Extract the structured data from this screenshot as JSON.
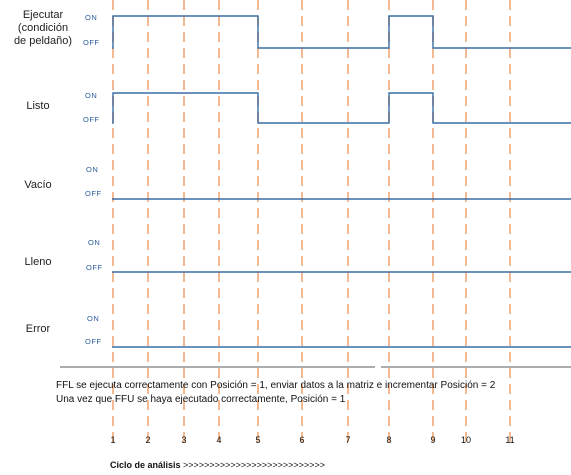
{
  "signals": [
    {
      "name_lines": [
        "Ejecutar",
        "(condición",
        "de peldaño)"
      ],
      "on_label": "ON",
      "off_label": "OFF",
      "transitions": [
        [
          1,
          5
        ],
        [
          8,
          9
        ]
      ]
    },
    {
      "name_lines": [
        "Listo"
      ],
      "on_label": "ON",
      "off_label": "OFF",
      "transitions": [
        [
          1,
          5
        ],
        [
          8,
          9
        ]
      ]
    },
    {
      "name_lines": [
        "Vacío"
      ],
      "on_label": "ON",
      "off_label": "OFF",
      "transitions": []
    },
    {
      "name_lines": [
        "Lleno"
      ],
      "on_label": "ON",
      "off_label": "OFF",
      "transitions": []
    },
    {
      "name_lines": [
        "Error"
      ],
      "on_label": "ON",
      "off_label": "OFF",
      "transitions": []
    }
  ],
  "notes": {
    "line1": "FFL se ejecuta correctamente con Posición = 1, enviar datos a la matriz e incrementar Posición = 2",
    "line2": "Una vez que FFU se haya ejecutado correctamente, Posición = 1"
  },
  "cycles": [
    "1",
    "2",
    "3",
    "4",
    "5",
    "6",
    "7",
    "8",
    "9",
    "10",
    "11"
  ],
  "scan_cycle": {
    "label": "Ciclo de análisis",
    "arrows": ">>>>>>>>>>>>>>>>>>>>>>>>>>>"
  },
  "colors": {
    "signal_line": "#3a6ea5",
    "level_text": "#2a5d9f",
    "cycle_marker": "#f3b990",
    "baseline": "#222222"
  }
}
